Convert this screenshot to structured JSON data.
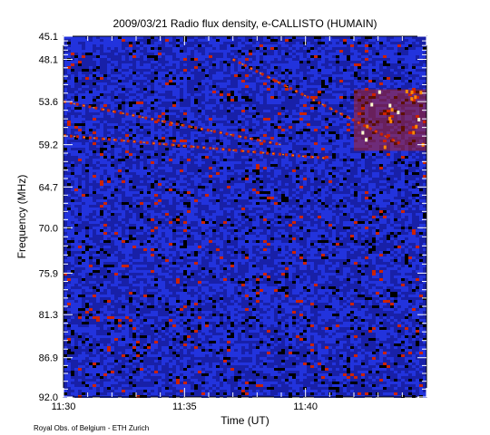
{
  "chart_data": {
    "type": "heatmap",
    "title": "2009/03/21  Radio flux density, e-CALLISTO (HUMAIN)",
    "xlabel": "Time (UT)",
    "ylabel": "Frequency (MHz)",
    "credit": "Royal Obs. of Belgium - ETH Zurich",
    "xlim": [
      "11:30",
      "11:45"
    ],
    "ylim": [
      45.1,
      92.0
    ],
    "y_inverted": true,
    "x_ticks": [
      "11:30",
      "11:35",
      "11:40"
    ],
    "y_ticks": [
      "45.1",
      "48.1",
      "53.6",
      "59.2",
      "64.7",
      "70.0",
      "75.9",
      "81.3",
      "86.9",
      "92.0"
    ],
    "colormap": [
      "#000000",
      "#1a1a9a",
      "#2233dd",
      "#cc2200",
      "#ff8800",
      "#ffffcc"
    ],
    "features": [
      {
        "type": "drifting-burst",
        "start": "11:30",
        "end": "11:39",
        "freq_start": 53.6,
        "freq_end": 59.2
      },
      {
        "type": "drifting-burst",
        "start": "11:30",
        "end": "11:41",
        "freq_start": 58.0,
        "freq_end": 61.0
      },
      {
        "type": "drifting-burst",
        "start": "11:37",
        "end": "11:44",
        "freq_start": 48.1,
        "freq_end": 59.2
      },
      {
        "type": "broadband-emission",
        "start": "11:42",
        "end": "11:45",
        "freq_start": 52.0,
        "freq_end": 60.0
      }
    ]
  }
}
